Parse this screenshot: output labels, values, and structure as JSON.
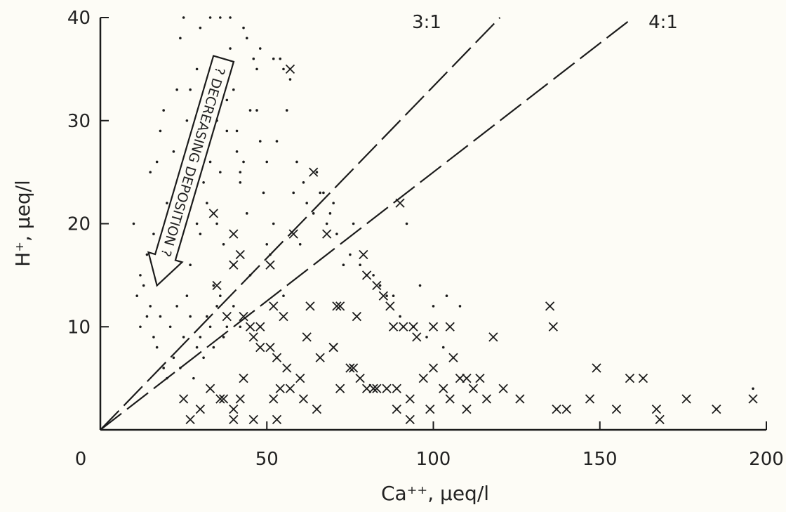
{
  "chart_data": {
    "type": "scatter",
    "title": "",
    "xlabel": "Ca⁺⁺, μeq/l",
    "ylabel": "H⁺, μeq/l",
    "xlim": [
      0,
      200
    ],
    "ylim": [
      0,
      40
    ],
    "grid": false,
    "x_ticks": [
      0,
      50,
      100,
      150,
      200
    ],
    "y_ticks": [
      10,
      20,
      30,
      40
    ],
    "reference_lines": [
      {
        "label": "3:1",
        "slope": 0.3333,
        "style": "dashed"
      },
      {
        "label": "4:1",
        "slope": 0.25,
        "style": "dashed"
      }
    ],
    "annotation": {
      "text": "? DECREASING DEPOSITION ?",
      "from": [
        37,
        36
      ],
      "to": [
        17,
        14
      ]
    },
    "series": [
      {
        "marker": "dot",
        "points": [
          [
            10,
            20
          ],
          [
            12,
            15
          ],
          [
            14,
            17
          ],
          [
            15,
            25
          ],
          [
            16,
            19
          ],
          [
            17,
            26
          ],
          [
            18,
            29
          ],
          [
            19,
            31
          ],
          [
            20,
            22
          ],
          [
            21,
            18
          ],
          [
            22,
            27
          ],
          [
            23,
            33
          ],
          [
            24,
            24
          ],
          [
            25,
            21
          ],
          [
            26,
            30
          ],
          [
            27,
            16
          ],
          [
            28,
            23
          ],
          [
            29,
            35
          ],
          [
            30,
            19
          ],
          [
            31,
            28
          ],
          [
            32,
            22
          ],
          [
            33,
            26
          ],
          [
            34,
            14
          ],
          [
            35,
            30
          ],
          [
            36,
            25
          ],
          [
            37,
            18
          ],
          [
            38,
            29
          ],
          [
            39,
            37
          ],
          [
            40,
            33
          ],
          [
            41,
            27
          ],
          [
            42,
            24
          ],
          [
            43,
            39
          ],
          [
            44,
            21
          ],
          [
            45,
            31
          ],
          [
            46,
            36
          ],
          [
            47,
            35
          ],
          [
            48,
            28
          ],
          [
            49,
            23
          ],
          [
            50,
            26
          ],
          [
            51,
            17
          ],
          [
            52,
            20
          ],
          [
            54,
            36
          ],
          [
            56,
            31
          ],
          [
            58,
            23
          ],
          [
            60,
            18
          ],
          [
            62,
            22
          ],
          [
            64,
            21
          ],
          [
            66,
            23
          ],
          [
            68,
            20
          ],
          [
            70,
            22
          ],
          [
            73,
            16
          ],
          [
            76,
            20
          ],
          [
            80,
            15
          ],
          [
            84,
            14
          ],
          [
            88,
            13
          ],
          [
            92,
            20
          ],
          [
            96,
            14
          ],
          [
            100,
            12
          ],
          [
            104,
            13
          ],
          [
            108,
            12
          ],
          [
            21,
            10
          ],
          [
            23,
            12
          ],
          [
            25,
            9
          ],
          [
            27,
            11
          ],
          [
            29,
            8
          ],
          [
            31,
            7
          ],
          [
            33,
            10
          ],
          [
            35,
            12
          ],
          [
            37,
            9
          ],
          [
            22,
            7
          ],
          [
            24,
            6
          ],
          [
            26,
            13
          ],
          [
            28,
            5
          ],
          [
            30,
            9
          ],
          [
            32,
            11
          ],
          [
            34,
            8
          ],
          [
            36,
            13
          ],
          [
            38,
            10
          ],
          [
            40,
            12
          ],
          [
            42,
            10
          ],
          [
            15,
            12
          ],
          [
            16,
            9
          ],
          [
            17,
            8
          ],
          [
            18,
            11
          ],
          [
            19,
            6
          ],
          [
            20,
            5
          ],
          [
            13,
            14
          ],
          [
            14,
            11
          ],
          [
            11,
            13
          ],
          [
            12,
            10
          ],
          [
            25,
            40
          ],
          [
            33,
            40
          ],
          [
            36,
            40
          ],
          [
            39,
            40
          ],
          [
            44,
            38
          ],
          [
            48,
            37
          ],
          [
            52,
            36
          ],
          [
            55,
            35
          ],
          [
            57,
            34
          ],
          [
            38,
            32
          ],
          [
            30,
            39
          ],
          [
            24,
            38
          ],
          [
            41,
            29
          ],
          [
            43,
            26
          ],
          [
            47,
            31
          ],
          [
            53,
            28
          ],
          [
            59,
            26
          ],
          [
            61,
            24
          ],
          [
            65,
            25
          ],
          [
            67,
            23
          ],
          [
            69,
            21
          ],
          [
            71,
            19
          ],
          [
            75,
            17
          ],
          [
            78,
            16
          ],
          [
            82,
            15
          ],
          [
            86,
            13
          ],
          [
            90,
            11
          ],
          [
            94,
            10
          ],
          [
            98,
            9
          ],
          [
            103,
            8
          ],
          [
            196,
            4
          ],
          [
            45,
            15
          ],
          [
            40,
            16
          ],
          [
            35,
            20
          ],
          [
            50,
            18
          ],
          [
            55,
            13
          ],
          [
            42,
            25
          ],
          [
            27,
            33
          ],
          [
            31,
            24
          ],
          [
            29,
            20
          ]
        ]
      },
      {
        "marker": "x",
        "points": [
          [
            57,
            35
          ],
          [
            64,
            25
          ],
          [
            58,
            19
          ],
          [
            34,
            21
          ],
          [
            40,
            19
          ],
          [
            35,
            14
          ],
          [
            40,
            16
          ],
          [
            42,
            17
          ],
          [
            43,
            11
          ],
          [
            51,
            16
          ],
          [
            52,
            12
          ],
          [
            55,
            11
          ],
          [
            63,
            12
          ],
          [
            68,
            19
          ],
          [
            71,
            12
          ],
          [
            72,
            12
          ],
          [
            77,
            11
          ],
          [
            79,
            17
          ],
          [
            80,
            15
          ],
          [
            83,
            14
          ],
          [
            85,
            13
          ],
          [
            87,
            12
          ],
          [
            88,
            10
          ],
          [
            91,
            10
          ],
          [
            94,
            10
          ],
          [
            95,
            9
          ],
          [
            100,
            10
          ],
          [
            105,
            10
          ],
          [
            118,
            9
          ],
          [
            135,
            12
          ],
          [
            136,
            10
          ],
          [
            46,
            9
          ],
          [
            48,
            8
          ],
          [
            51,
            8
          ],
          [
            53,
            7
          ],
          [
            56,
            6
          ],
          [
            60,
            5
          ],
          [
            62,
            9
          ],
          [
            66,
            7
          ],
          [
            70,
            8
          ],
          [
            75,
            6
          ],
          [
            78,
            5
          ],
          [
            80,
            4
          ],
          [
            83,
            4
          ],
          [
            86,
            4
          ],
          [
            89,
            4
          ],
          [
            93,
            3
          ],
          [
            97,
            5
          ],
          [
            100,
            6
          ],
          [
            103,
            4
          ],
          [
            106,
            7
          ],
          [
            108,
            5
          ],
          [
            110,
            5
          ],
          [
            112,
            4
          ],
          [
            114,
            5
          ],
          [
            116,
            3
          ],
          [
            121,
            4
          ],
          [
            149,
            6
          ],
          [
            159,
            5
          ],
          [
            163,
            5
          ],
          [
            25,
            3
          ],
          [
            30,
            2
          ],
          [
            33,
            4
          ],
          [
            37,
            3
          ],
          [
            40,
            2
          ],
          [
            42,
            3
          ],
          [
            46,
            1
          ],
          [
            52,
            3
          ],
          [
            54,
            4
          ],
          [
            57,
            4
          ],
          [
            61,
            3
          ],
          [
            65,
            2
          ],
          [
            72,
            4
          ],
          [
            76,
            6
          ],
          [
            82,
            4
          ],
          [
            89,
            2
          ],
          [
            93,
            1
          ],
          [
            99,
            2
          ],
          [
            105,
            3
          ],
          [
            110,
            2
          ],
          [
            126,
            3
          ],
          [
            137,
            2
          ],
          [
            140,
            2
          ],
          [
            147,
            3
          ],
          [
            155,
            2
          ],
          [
            167,
            2
          ],
          [
            168,
            1
          ],
          [
            176,
            3
          ],
          [
            185,
            2
          ],
          [
            196,
            3
          ],
          [
            27,
            1
          ],
          [
            40,
            1
          ],
          [
            53,
            1
          ],
          [
            48,
            10
          ],
          [
            45,
            10
          ],
          [
            38,
            11
          ],
          [
            70,
            8
          ],
          [
            90,
            22
          ],
          [
            36,
            3
          ],
          [
            43,
            5
          ]
        ]
      }
    ]
  }
}
